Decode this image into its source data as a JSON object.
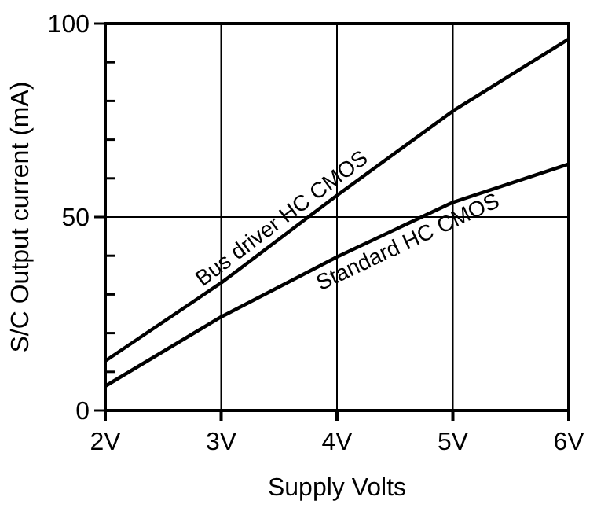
{
  "chart_data": {
    "type": "line",
    "xlabel": "Supply Volts",
    "ylabel": "S/C Output current (mA)",
    "x": [
      2,
      3,
      4,
      5,
      6
    ],
    "xlim": [
      2,
      6
    ],
    "xticks": [
      {
        "value": 2,
        "label": "2V"
      },
      {
        "value": 3,
        "label": "3V"
      },
      {
        "value": 4,
        "label": "4V"
      },
      {
        "value": 5,
        "label": "5V"
      },
      {
        "value": 6,
        "label": "6V"
      }
    ],
    "ylim": [
      0,
      100
    ],
    "yticks": [
      0,
      {
        "value": 10,
        "label": null
      },
      {
        "value": 20,
        "label": null
      },
      {
        "value": 30,
        "label": null
      },
      {
        "value": 40,
        "label": null
      },
      50,
      {
        "value": 60,
        "label": null
      },
      {
        "value": 70,
        "label": null
      },
      {
        "value": 80,
        "label": null
      },
      {
        "value": 90,
        "label": null
      },
      100
    ],
    "grid": true,
    "line_style": "solid",
    "marker": "none",
    "series": [
      {
        "name": "Bus driver HC CMOS",
        "color": "#000000",
        "values": [
          12.8,
          33,
          55.6,
          77.4,
          96
        ]
      },
      {
        "name": "Standard HC CMOS",
        "color": "#000000",
        "values": [
          6.3,
          24.2,
          39.7,
          53.8,
          63.7
        ]
      }
    ]
  }
}
